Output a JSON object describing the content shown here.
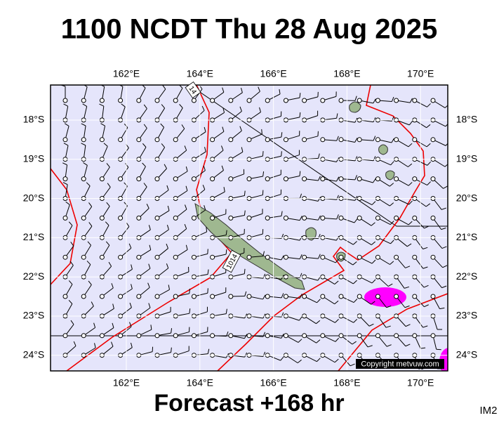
{
  "title": "1100 NCDT Thu 28 Aug 2025",
  "footer": "Forecast +168 hr",
  "image_code": "IM2",
  "copyright": "Copyright metvuw.com",
  "longitude_labels": [
    "162°E",
    "164°E",
    "166°E",
    "168°E",
    "170°E"
  ],
  "latitude_labels": [
    "18°S",
    "19°S",
    "20°S",
    "21°S",
    "22°S",
    "23°S",
    "24°S"
  ],
  "isobar_labels": [
    "14",
    "1014"
  ]
}
